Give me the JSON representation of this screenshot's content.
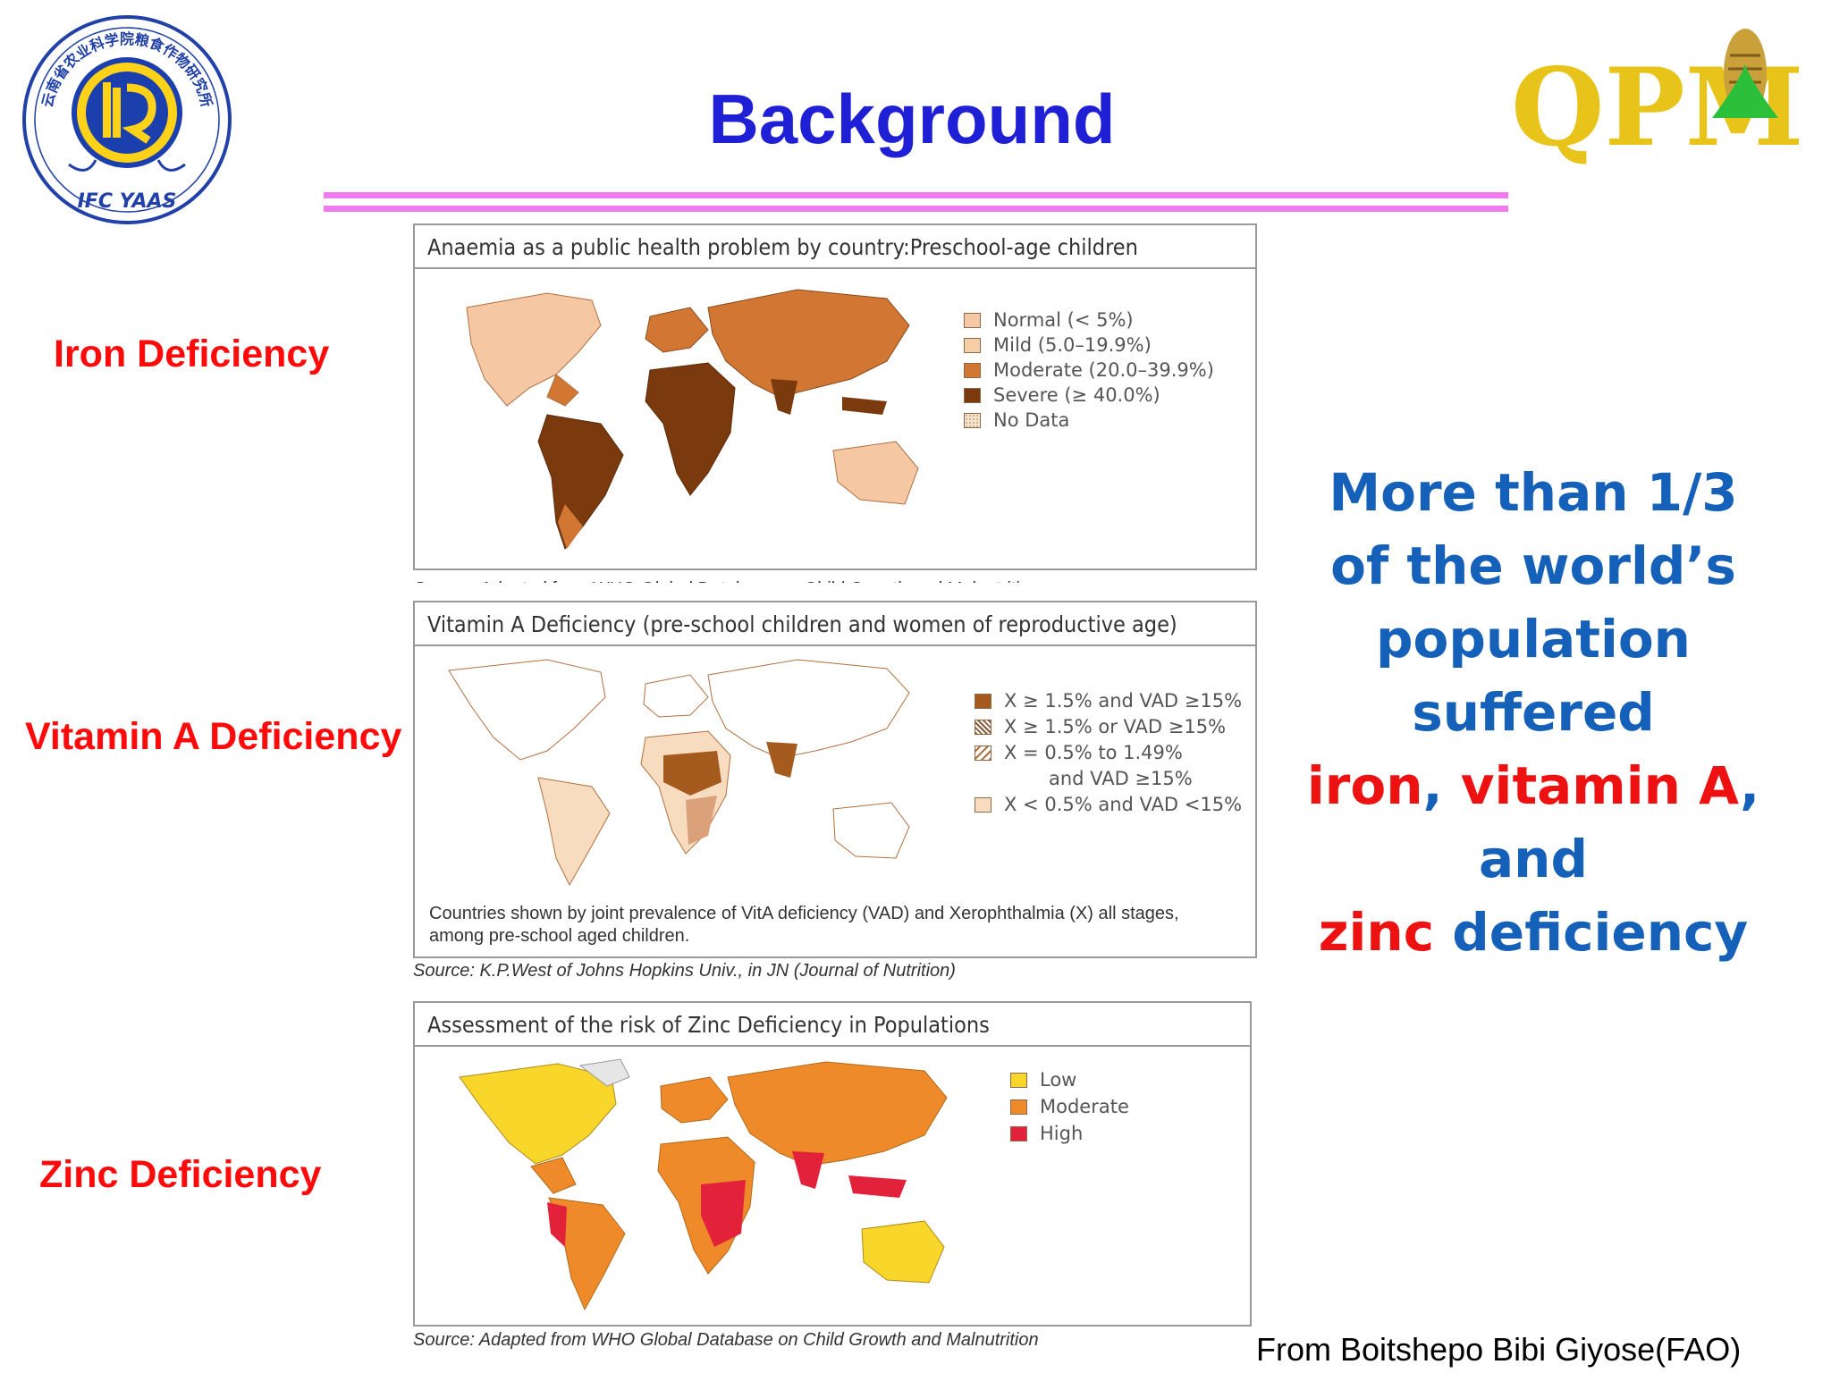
{
  "slide": {
    "title": "Background",
    "logo_left_text": "IFC YAAS",
    "logo_left_chinese": "云南省农业科学院粮食作物研究所",
    "logo_right_text": "QPM"
  },
  "labels": {
    "iron": "Iron Deficiency",
    "vitamin_a": "Vitamin A Deficiency",
    "zinc": "Zinc Deficiency"
  },
  "iron_map": {
    "title": "Anaemia as a public health problem by country:Preschool-age children",
    "legend": [
      {
        "label": "Normal (< 5%)",
        "color": "#f5c7a3"
      },
      {
        "label": "Mild (5.0–19.9%)",
        "color": "#f6cfa9"
      },
      {
        "label": "Moderate (20.0–39.9%)",
        "color": "#d27733"
      },
      {
        "label": "Severe (≥ 40.0%)",
        "color": "#7a3a0e"
      },
      {
        "label": "No Data",
        "color": "#f3e4cf"
      }
    ],
    "source": "Source: Adapted from WHO Global Database on Child Growth and Malnutrition"
  },
  "vita_map": {
    "title": "Vitamin A Deficiency (pre-school children and women of reproductive age)",
    "legend": [
      {
        "label": "X ≥ 1.5% and VAD ≥15%",
        "color": "#a55a1e"
      },
      {
        "label": "X ≥ 1.5% or VAD ≥15%",
        "color": "#d9a07a"
      },
      {
        "label": "X = 0.5% to 1.49%",
        "color": "#e7b58b"
      },
      {
        "label": "and VAD ≥15%",
        "color": ""
      },
      {
        "label": "X < 0.5% and VAD <15%",
        "color": "#f8dcc0"
      }
    ],
    "note": "Countries shown by joint prevalence of VitA deficiency (VAD) and Xerophthalmia (X) all stages, among pre-school aged children.",
    "source": "Source: K.P.West of Johns Hopkins Univ., in JN (Journal of Nutrition)"
  },
  "zinc_map": {
    "title": "Assessment of the risk of Zinc Deficiency in Populations",
    "legend": [
      {
        "label": "Low",
        "color": "#f8d62a"
      },
      {
        "label": "Moderate",
        "color": "#ef8a2a"
      },
      {
        "label": "High",
        "color": "#e2213a"
      }
    ],
    "source": "Source: Adapted from WHO Global Database on Child Growth and Malnutrition"
  },
  "message": {
    "line1": "More than 1/3",
    "line2": "of the world’s",
    "line3": "population suffered",
    "iron": "iron",
    "comma1": ",",
    "vitamin_a": "vitamin A",
    "comma2": ",",
    "and": "and",
    "zinc": "zinc",
    "deficiency": "deficiency"
  },
  "credit": "From  Boitshepo Bibi Giyose(FAO)"
}
